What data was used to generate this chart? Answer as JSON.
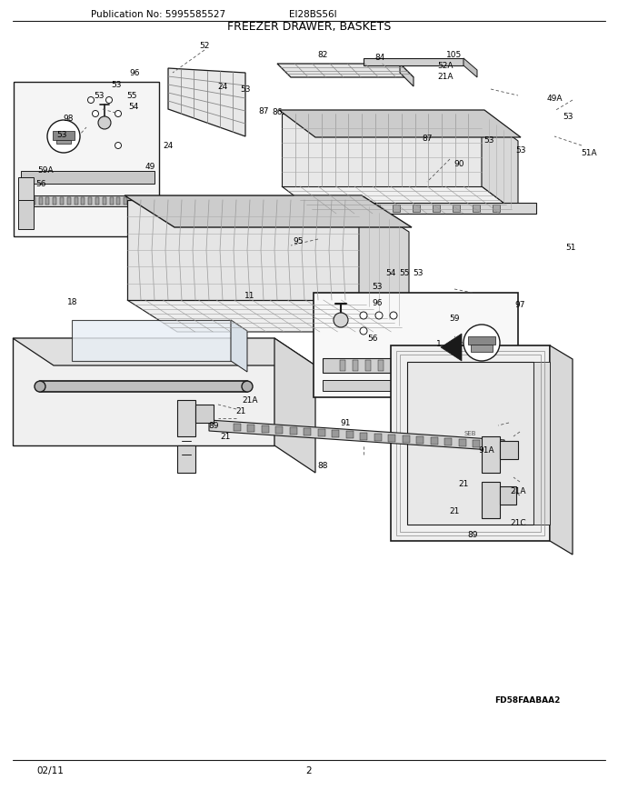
{
  "title": "FREEZER DRAWER, BASKETS",
  "pub_no": "Publication No: 5995585527",
  "model": "EI28BS56I",
  "page": "2",
  "date": "02/11",
  "diagram_code": "FD58FAABAA2",
  "bg_color": "#ffffff",
  "dark": "#1a1a1a",
  "gray": "#888888",
  "light_gray": "#cccccc",
  "med_gray": "#aaaaaa",
  "title_fontsize": 9,
  "header_fontsize": 7.5,
  "footer_fontsize": 7.5,
  "label_fontsize": 6.5
}
